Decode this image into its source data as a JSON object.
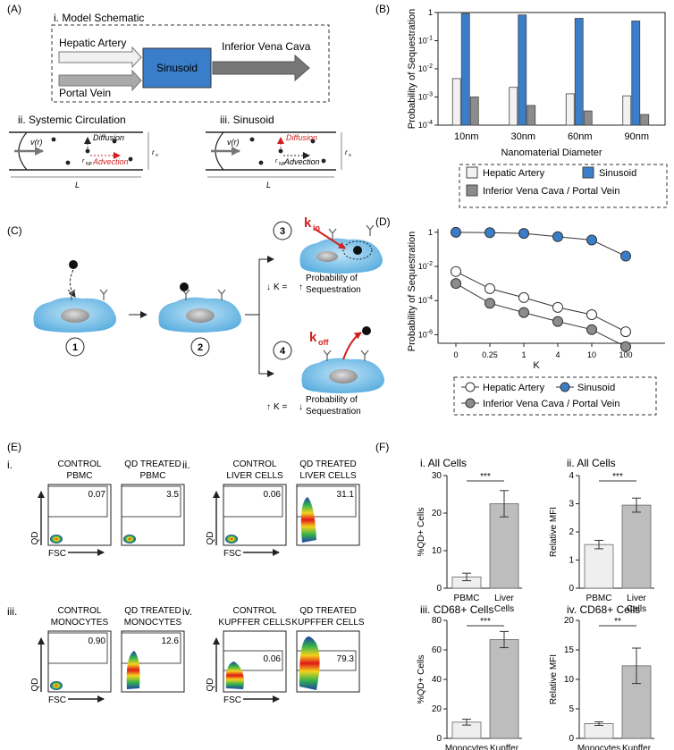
{
  "panelA": {
    "label": "(A)",
    "sub_i": "i. Model Schematic",
    "hepatic_artery": "Hepatic Artery",
    "portal_vein": "Portal Vein",
    "sinusoid": "Sinusoid",
    "inferior_vena_cava": "Inferior Vena Cava",
    "sub_ii": "ii. Systemic Circulation",
    "sub_iii": "iii. Sinusoid",
    "velocity": "v(r)",
    "diffusion": "Diffusion",
    "advection": "Advection",
    "r_np": "r",
    "r_np_sub": "NP",
    "r_o": "r",
    "r_o_sub": "o",
    "length": "L",
    "colors": {
      "sinusoid": "#3a7dc9",
      "accent_red": "#d21f1f"
    }
  },
  "panelC": {
    "label": "(C)",
    "step1": "1",
    "step2": "2",
    "step3": "3",
    "step4": "4",
    "k_in": "k",
    "k_in_sub": "in",
    "k_off": "k",
    "k_off_sub": "off",
    "k_down_text": "K = ",
    "k_up_text": "K = ",
    "prob_line1": "Probability of",
    "prob_line2": "Sequestration"
  },
  "panelE": {
    "label": "(E)",
    "qd_axis": "QD",
    "fsc_axis": "FSC",
    "groups": [
      {
        "roman": "i.",
        "plots": [
          {
            "line1": "CONTROL",
            "line2": "PBMC",
            "value": "0.07"
          },
          {
            "line1": "QD TREATED",
            "line2": "PBMC",
            "value": "3.5"
          }
        ]
      },
      {
        "roman": "ii.",
        "plots": [
          {
            "line1": "CONTROL",
            "line2": "LIVER CELLS",
            "value": "0.06"
          },
          {
            "line1": "QD TREATED",
            "line2": "LIVER CELLS",
            "value": "31.1"
          }
        ]
      },
      {
        "roman": "iii.",
        "plots": [
          {
            "line1": "CONTROL",
            "line2": "MONOCYTES",
            "value": "0.90"
          },
          {
            "line1": "QD TREATED",
            "line2": "MONOCYTES",
            "value": "12.6"
          }
        ]
      },
      {
        "roman": "iv.",
        "plots": [
          {
            "line1": "CONTROL",
            "line2": "KUPFFER CELLS",
            "value": "0.06"
          },
          {
            "line1": "QD TREATED",
            "line2": "KUPFFER CELLS",
            "value": "79.3"
          }
        ]
      }
    ]
  },
  "chart_data": [
    {
      "id": "B",
      "panel_label": "(B)",
      "type": "bar",
      "title": "",
      "xlabel": "Nanomaterial Diameter",
      "ylabel": "Probability of Sequestration",
      "yscale": "log",
      "ylim": [
        0.0001,
        1
      ],
      "ytick_base": "10",
      "ytick_exponents": [
        "-4",
        "-3",
        "-2",
        "-1"
      ],
      "ytick_top": "1",
      "categories": [
        "10nm",
        "30nm",
        "60nm",
        "90nm"
      ],
      "series": [
        {
          "name": "Hepatic Artery",
          "color": "#f2f2f2",
          "values": [
            0.0045,
            0.0022,
            0.0013,
            0.0011
          ]
        },
        {
          "name": "Sinusoid",
          "color": "#3a7dc9",
          "values": [
            0.92,
            0.82,
            0.62,
            0.5
          ]
        },
        {
          "name": "Inferior Vena Cava / Portal Vein",
          "color": "#8c8c8c",
          "values": [
            0.001,
            0.0005,
            0.00032,
            0.00024
          ]
        }
      ],
      "legend": [
        "Hepatic Artery",
        "Sinusoid",
        "Inferior Vena Cava / Portal Vein"
      ]
    },
    {
      "id": "D",
      "panel_label": "(D)",
      "type": "line",
      "xlabel": "K",
      "ylabel": "Probability of Sequestration",
      "yscale": "log",
      "ylim": [
        5e-07,
        1
      ],
      "ytick_base": "10",
      "ytick_exponents": [
        "-6",
        "-4",
        "-2"
      ],
      "ytick_top": "1",
      "x": [
        "0",
        "0.25",
        "1",
        "4",
        "10",
        "100"
      ],
      "series": [
        {
          "name": "Hepatic Artery",
          "color": "#ffffff",
          "values": [
            0.005,
            0.0005,
            0.00015,
            4e-05,
            1.5e-05,
            1.5e-06
          ]
        },
        {
          "name": "Sinusoid",
          "color": "#3a7dc9",
          "values": [
            1.0,
            0.95,
            0.85,
            0.55,
            0.35,
            0.04
          ]
        },
        {
          "name": "Inferior Vena Cava / Portal Vein",
          "color": "#8c8c8c",
          "values": [
            0.001,
            7e-05,
            2e-05,
            6e-06,
            2e-06,
            2e-07
          ]
        }
      ],
      "legend": [
        "Hepatic Artery",
        "Sinusoid",
        "Inferior Vena Cava / Portal Vein"
      ]
    },
    {
      "id": "F1",
      "panel_label": "(F)",
      "type": "bar",
      "title": "i. All Cells",
      "ylabel": "%QD+ Cells",
      "ylim": [
        0,
        30
      ],
      "yticks": [
        "0",
        "10",
        "20",
        "30"
      ],
      "categories": [
        "PBMC",
        "Liver\nCells"
      ],
      "values": [
        3,
        22.5
      ],
      "errors": [
        1,
        3.5
      ],
      "significance": "***",
      "colors": [
        "#efefef",
        "#bdbdbd"
      ]
    },
    {
      "id": "F2",
      "type": "bar",
      "title": "ii. All Cells",
      "ylabel": "Relative MFI",
      "ylim": [
        0,
        4
      ],
      "yticks": [
        "0",
        "1",
        "2",
        "3",
        "4"
      ],
      "categories": [
        "PBMC",
        "Liver\nCells"
      ],
      "values": [
        1.55,
        2.95
      ],
      "errors": [
        0.15,
        0.25
      ],
      "significance": "***",
      "colors": [
        "#efefef",
        "#bdbdbd"
      ]
    },
    {
      "id": "F3",
      "type": "bar",
      "title": "iii. CD68+ Cells",
      "ylabel": "%QD+ Cells",
      "ylim": [
        0,
        80
      ],
      "yticks": [
        "0",
        "20",
        "40",
        "60",
        "80"
      ],
      "categories": [
        "Monocytes",
        "Kupffer\nCells"
      ],
      "values": [
        11,
        67
      ],
      "errors": [
        2,
        5.5
      ],
      "significance": "***",
      "colors": [
        "#efefef",
        "#bdbdbd"
      ]
    },
    {
      "id": "F4",
      "type": "bar",
      "title": "iv. CD68+ Cells",
      "ylabel": "Relative MFI",
      "ylim": [
        0,
        20
      ],
      "yticks": [
        "0",
        "5",
        "10",
        "15",
        "20"
      ],
      "categories": [
        "Monocytes",
        "Kupffer\nCells"
      ],
      "values": [
        2.5,
        12.3
      ],
      "errors": [
        0.3,
        3
      ],
      "significance": "**",
      "colors": [
        "#efefef",
        "#bdbdbd"
      ]
    }
  ]
}
